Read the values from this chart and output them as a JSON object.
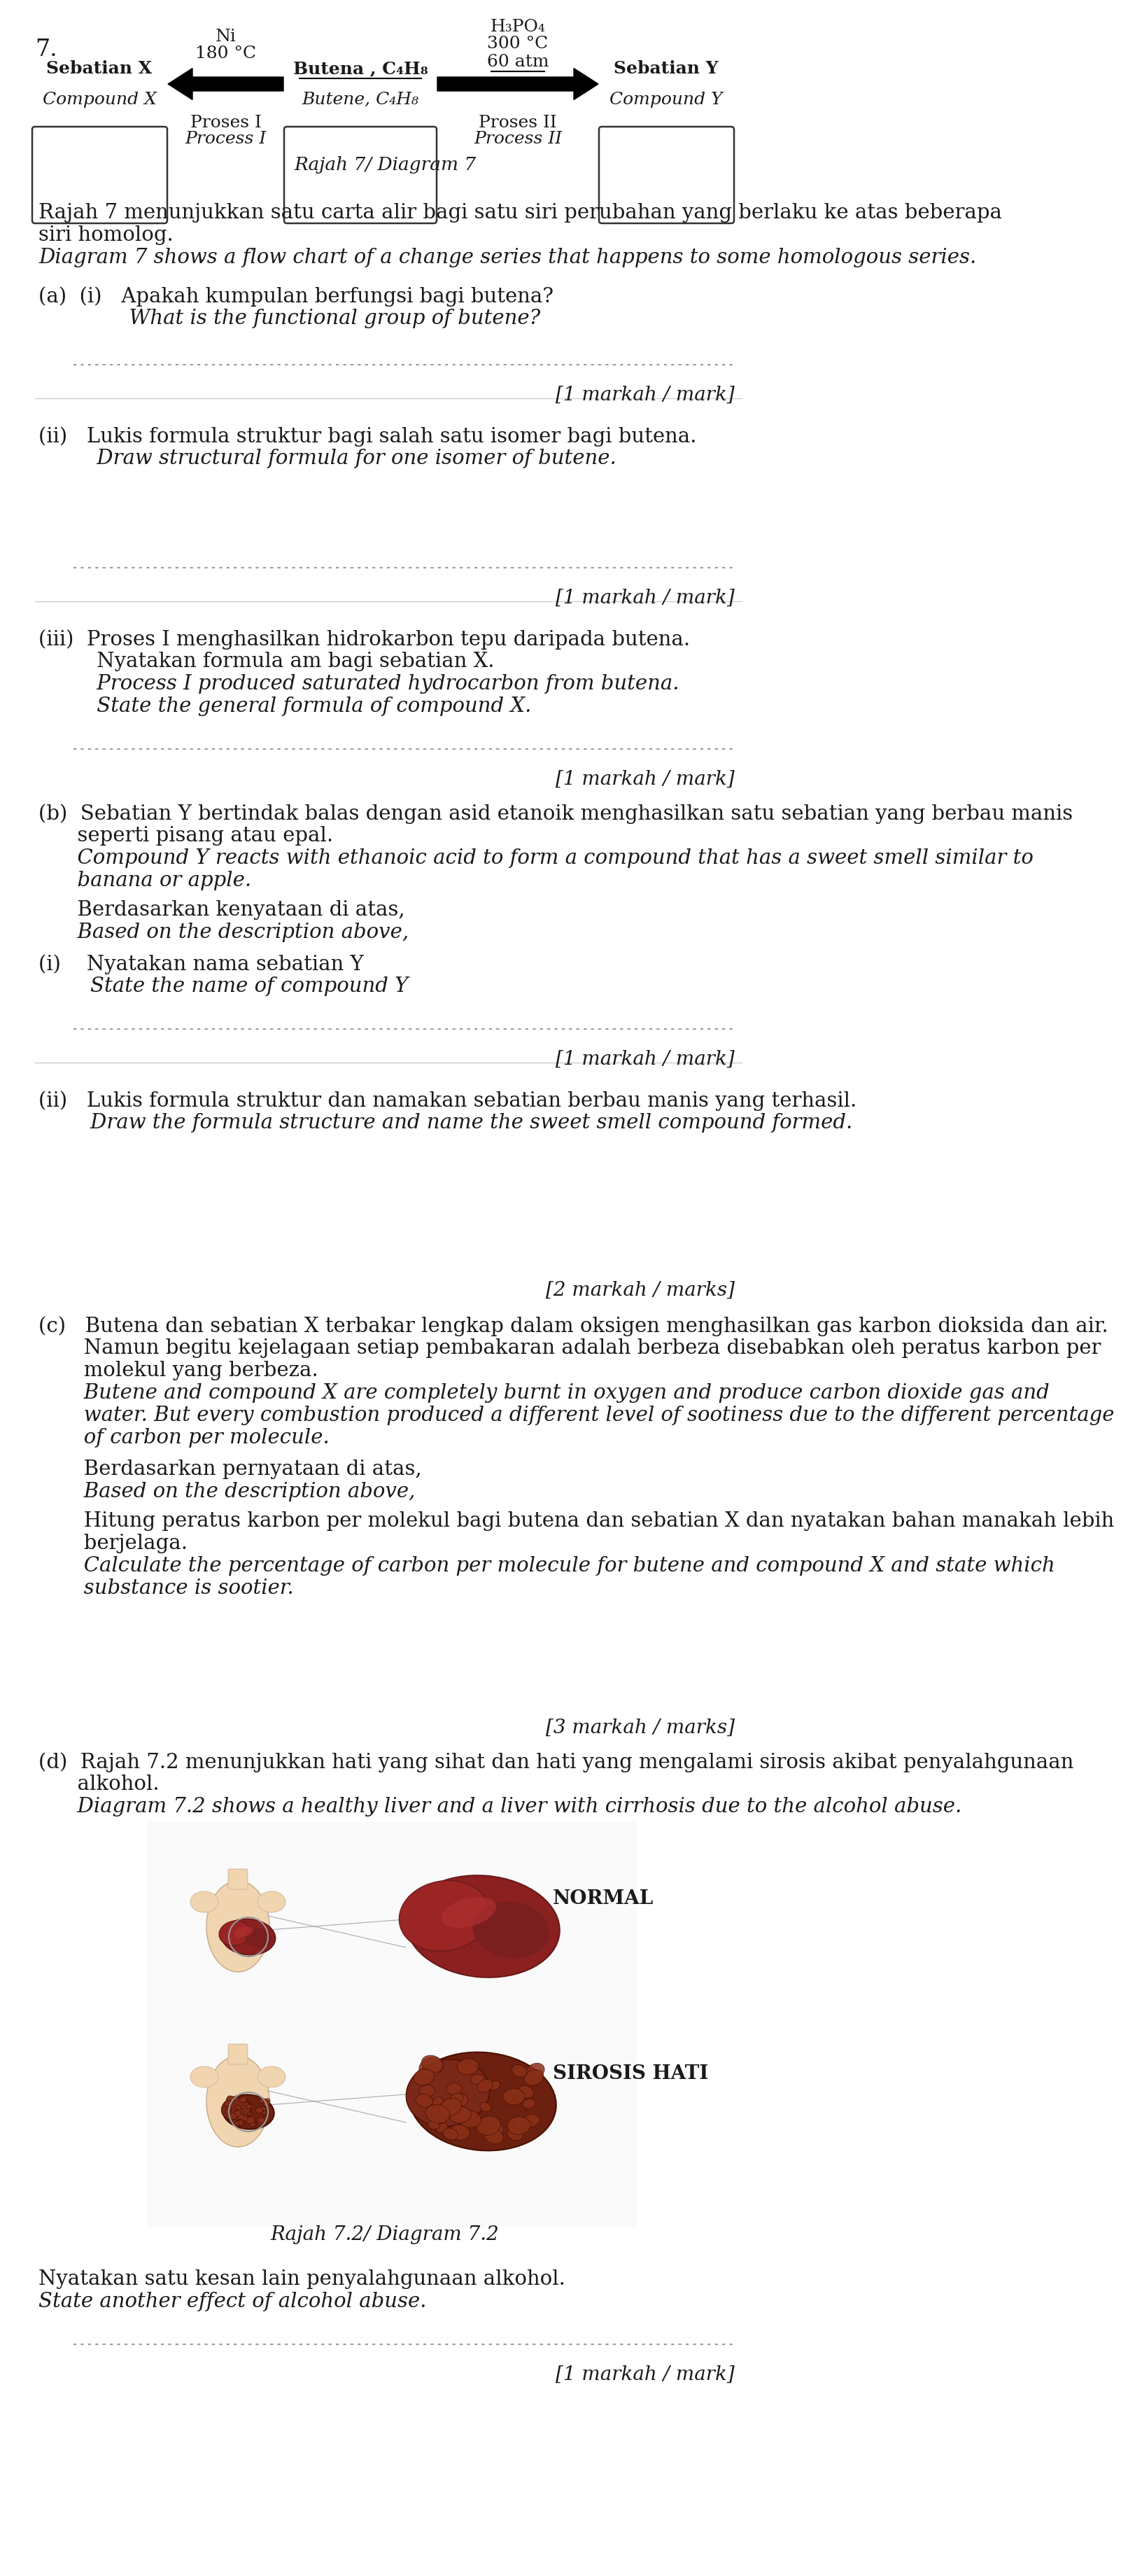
{
  "page_number": "7.",
  "bg_color": "#ffffff",
  "text_color": "#1a1a1a",
  "diagram_title": "Rajah 7/ Diagram 7",
  "box1_line1": "Sebatian X",
  "box1_line2": "Compound X",
  "box2_line1": "Butena , C₄H₈",
  "box2_line2": "Butene, C₄H₈",
  "box3_line1": "Sebatian Y",
  "box3_line2": "Compound Y",
  "arrow1_label_top": "Ni",
  "arrow1_label_mid": "180 °C",
  "arrow1_bottom1": "Proses I",
  "arrow1_bottom2": "Process I",
  "arrow2_label_top1": "H₃PO₄",
  "arrow2_label_top2": "300 °C",
  "arrow2_label_top3": "60 atm",
  "arrow2_bottom1": "Proses II",
  "arrow2_bottom2": "Process II",
  "intro_malay_1": "Rajah 7 menunjukkan satu carta alir bagi satu siri perubahan yang berlaku ke atas beberapa",
  "intro_malay_2": "siri homolog.",
  "intro_english": "Diagram 7 shows a flow chart of a change series that happens to some homologous series.",
  "mark1": "[1 markah / mark]",
  "mark2": "[1 markah / mark]",
  "mark3": "[1 markah / mark]",
  "mark4": "[1 markah / mark]",
  "mark5": "[2 markah / marks]",
  "mark6": "[3 markah / marks]",
  "mark7": "[1 markah / mark]",
  "sep_color": "#cccccc",
  "dot_color": "#888888"
}
